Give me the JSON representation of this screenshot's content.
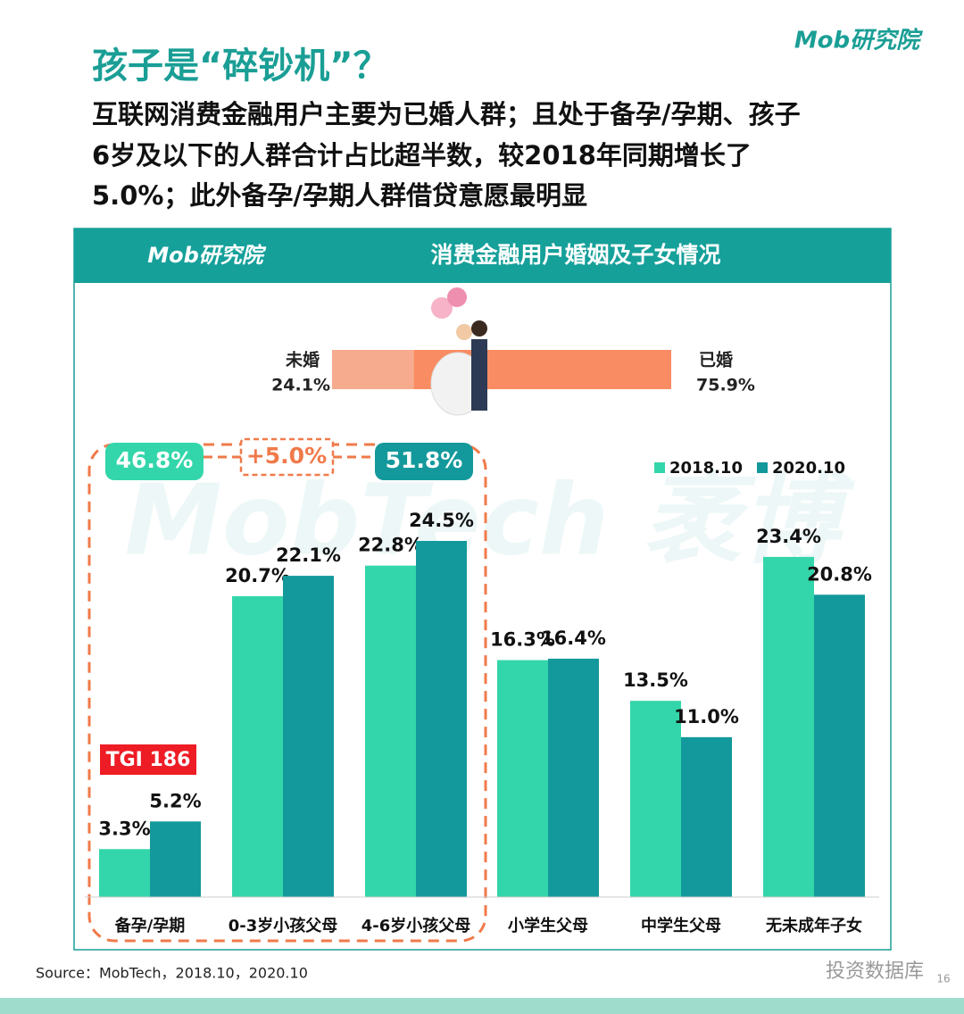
{
  "logo": "Mob研究院",
  "header": {
    "title": "孩子是“碎钞机”？",
    "subtitle": [
      "互联网消费金融用户主要为已婚人群；且处于备孕/孕期、孩子",
      "6岁及以下的人群合计占比超半数，较2018年同期增长了",
      "5.0%；此外备孕/孕期人群借贷意愿最明显"
    ]
  },
  "watermark": "MobTech 袤博",
  "marriage": {
    "categories": [
      "未婚",
      "已婚"
    ],
    "values": [
      24.1,
      75.9
    ],
    "value_labels": [
      "24.1%",
      "75.9%"
    ],
    "colors": [
      "#f7ab8e",
      "#f98c62"
    ]
  },
  "chart_data": {
    "type": "bar",
    "title": "消费金融用户婚姻及子女情况",
    "categories": [
      "备孕/孕期",
      "0-3岁小孩父母",
      "4-6岁小孩父母",
      "小学生父母",
      "中学生父母",
      "无未成年子女"
    ],
    "series": [
      {
        "name": "2018.10",
        "color": "#33d6aa",
        "values": [
          3.3,
          20.7,
          22.8,
          16.3,
          13.5,
          23.4
        ],
        "value_labels": [
          "3.3%",
          "20.7%",
          "22.8%",
          "16.3%",
          "13.5%",
          "23.4%"
        ]
      },
      {
        "name": "2020.10",
        "color": "#13999b",
        "values": [
          5.2,
          22.1,
          24.5,
          16.4,
          11.0,
          20.8
        ],
        "value_labels": [
          "5.2%",
          "22.1%",
          "24.5%",
          "16.4%",
          "11.0%",
          "20.8%"
        ]
      }
    ],
    "annotations": [
      "46.8%",
      "+5.0%",
      "51.8%",
      "TGI 186"
    ]
  },
  "source": "Source：MobTech，2018.10，2020.10",
  "footer": {
    "account": "投资数据库",
    "page": "16"
  }
}
